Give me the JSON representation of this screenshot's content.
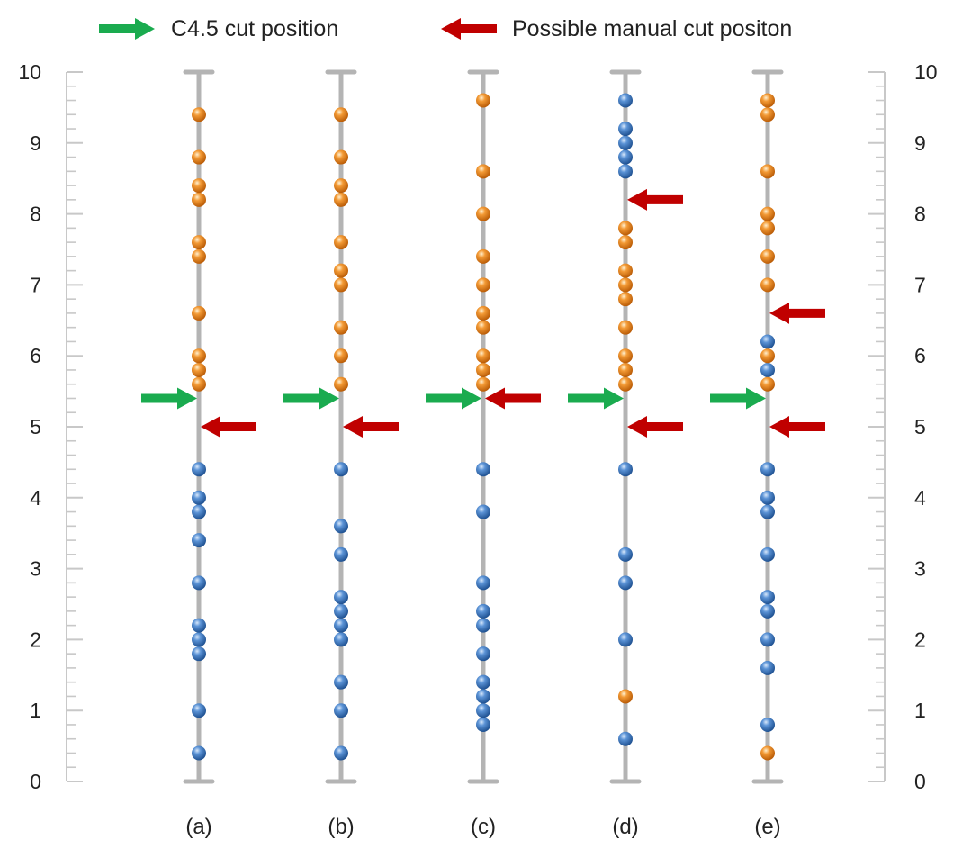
{
  "chart_data": {
    "type": "scatter",
    "title": "",
    "xlabel": "",
    "ylabel": "",
    "ylim": [
      0,
      10
    ],
    "y_ticks": [
      "0",
      "1",
      "2",
      "3",
      "4",
      "5",
      "6",
      "7",
      "8",
      "9",
      "10"
    ],
    "minor_tick_step": 0.2,
    "grid": false,
    "legend_position": "top",
    "legend": [
      {
        "label": "C4.5 cut position",
        "color": "#1aab4f",
        "direction": "right"
      },
      {
        "label": "Possible manual cut positon",
        "color": "#c00000",
        "direction": "left"
      }
    ],
    "colors": {
      "blue": "#2e6db4",
      "orange": "#e07b12",
      "axis": "#b4b4b4"
    },
    "columns": [
      {
        "label": "(a)",
        "blue": [
          0.4,
          1.0,
          1.8,
          2.0,
          2.2,
          2.8,
          3.4,
          3.8,
          4.0,
          4.4
        ],
        "orange": [
          5.6,
          5.8,
          6.0,
          6.6,
          7.4,
          7.6,
          8.2,
          8.4,
          8.8,
          9.4
        ],
        "c45_cut": 5.4,
        "manual_cuts": [
          5.0
        ]
      },
      {
        "label": "(b)",
        "blue": [
          0.4,
          1.0,
          1.4,
          2.0,
          2.2,
          2.4,
          2.6,
          3.2,
          3.6,
          4.4
        ],
        "orange": [
          5.6,
          6.0,
          6.4,
          7.0,
          7.2,
          7.6,
          8.2,
          8.4,
          8.8,
          9.4
        ],
        "c45_cut": 5.4,
        "manual_cuts": [
          5.0
        ]
      },
      {
        "label": "(c)",
        "blue": [
          0.8,
          1.0,
          1.2,
          1.4,
          1.8,
          2.2,
          2.4,
          2.8,
          3.8,
          4.4
        ],
        "orange": [
          5.6,
          5.8,
          6.0,
          6.4,
          6.6,
          7.0,
          7.4,
          8.0,
          8.6,
          9.6
        ],
        "c45_cut": 5.4,
        "manual_cuts": [
          5.4
        ]
      },
      {
        "label": "(d)",
        "blue": [
          0.6,
          2.0,
          2.8,
          3.2,
          4.4,
          8.6,
          8.8,
          9.0,
          9.2,
          9.6
        ],
        "orange": [
          1.2,
          5.6,
          5.8,
          6.0,
          6.4,
          6.8,
          7.0,
          7.2,
          7.6,
          7.8
        ],
        "c45_cut": 5.4,
        "manual_cuts": [
          5.0,
          8.2
        ]
      },
      {
        "label": "(e)",
        "blue": [
          0.8,
          1.6,
          2.0,
          2.4,
          2.6,
          3.2,
          3.8,
          4.0,
          4.4,
          5.8,
          6.2
        ],
        "orange": [
          0.4,
          5.6,
          6.0,
          7.0,
          7.4,
          7.8,
          8.0,
          8.6,
          9.4,
          9.6
        ],
        "c45_cut": 5.4,
        "manual_cuts": [
          5.0,
          6.6
        ]
      }
    ]
  }
}
